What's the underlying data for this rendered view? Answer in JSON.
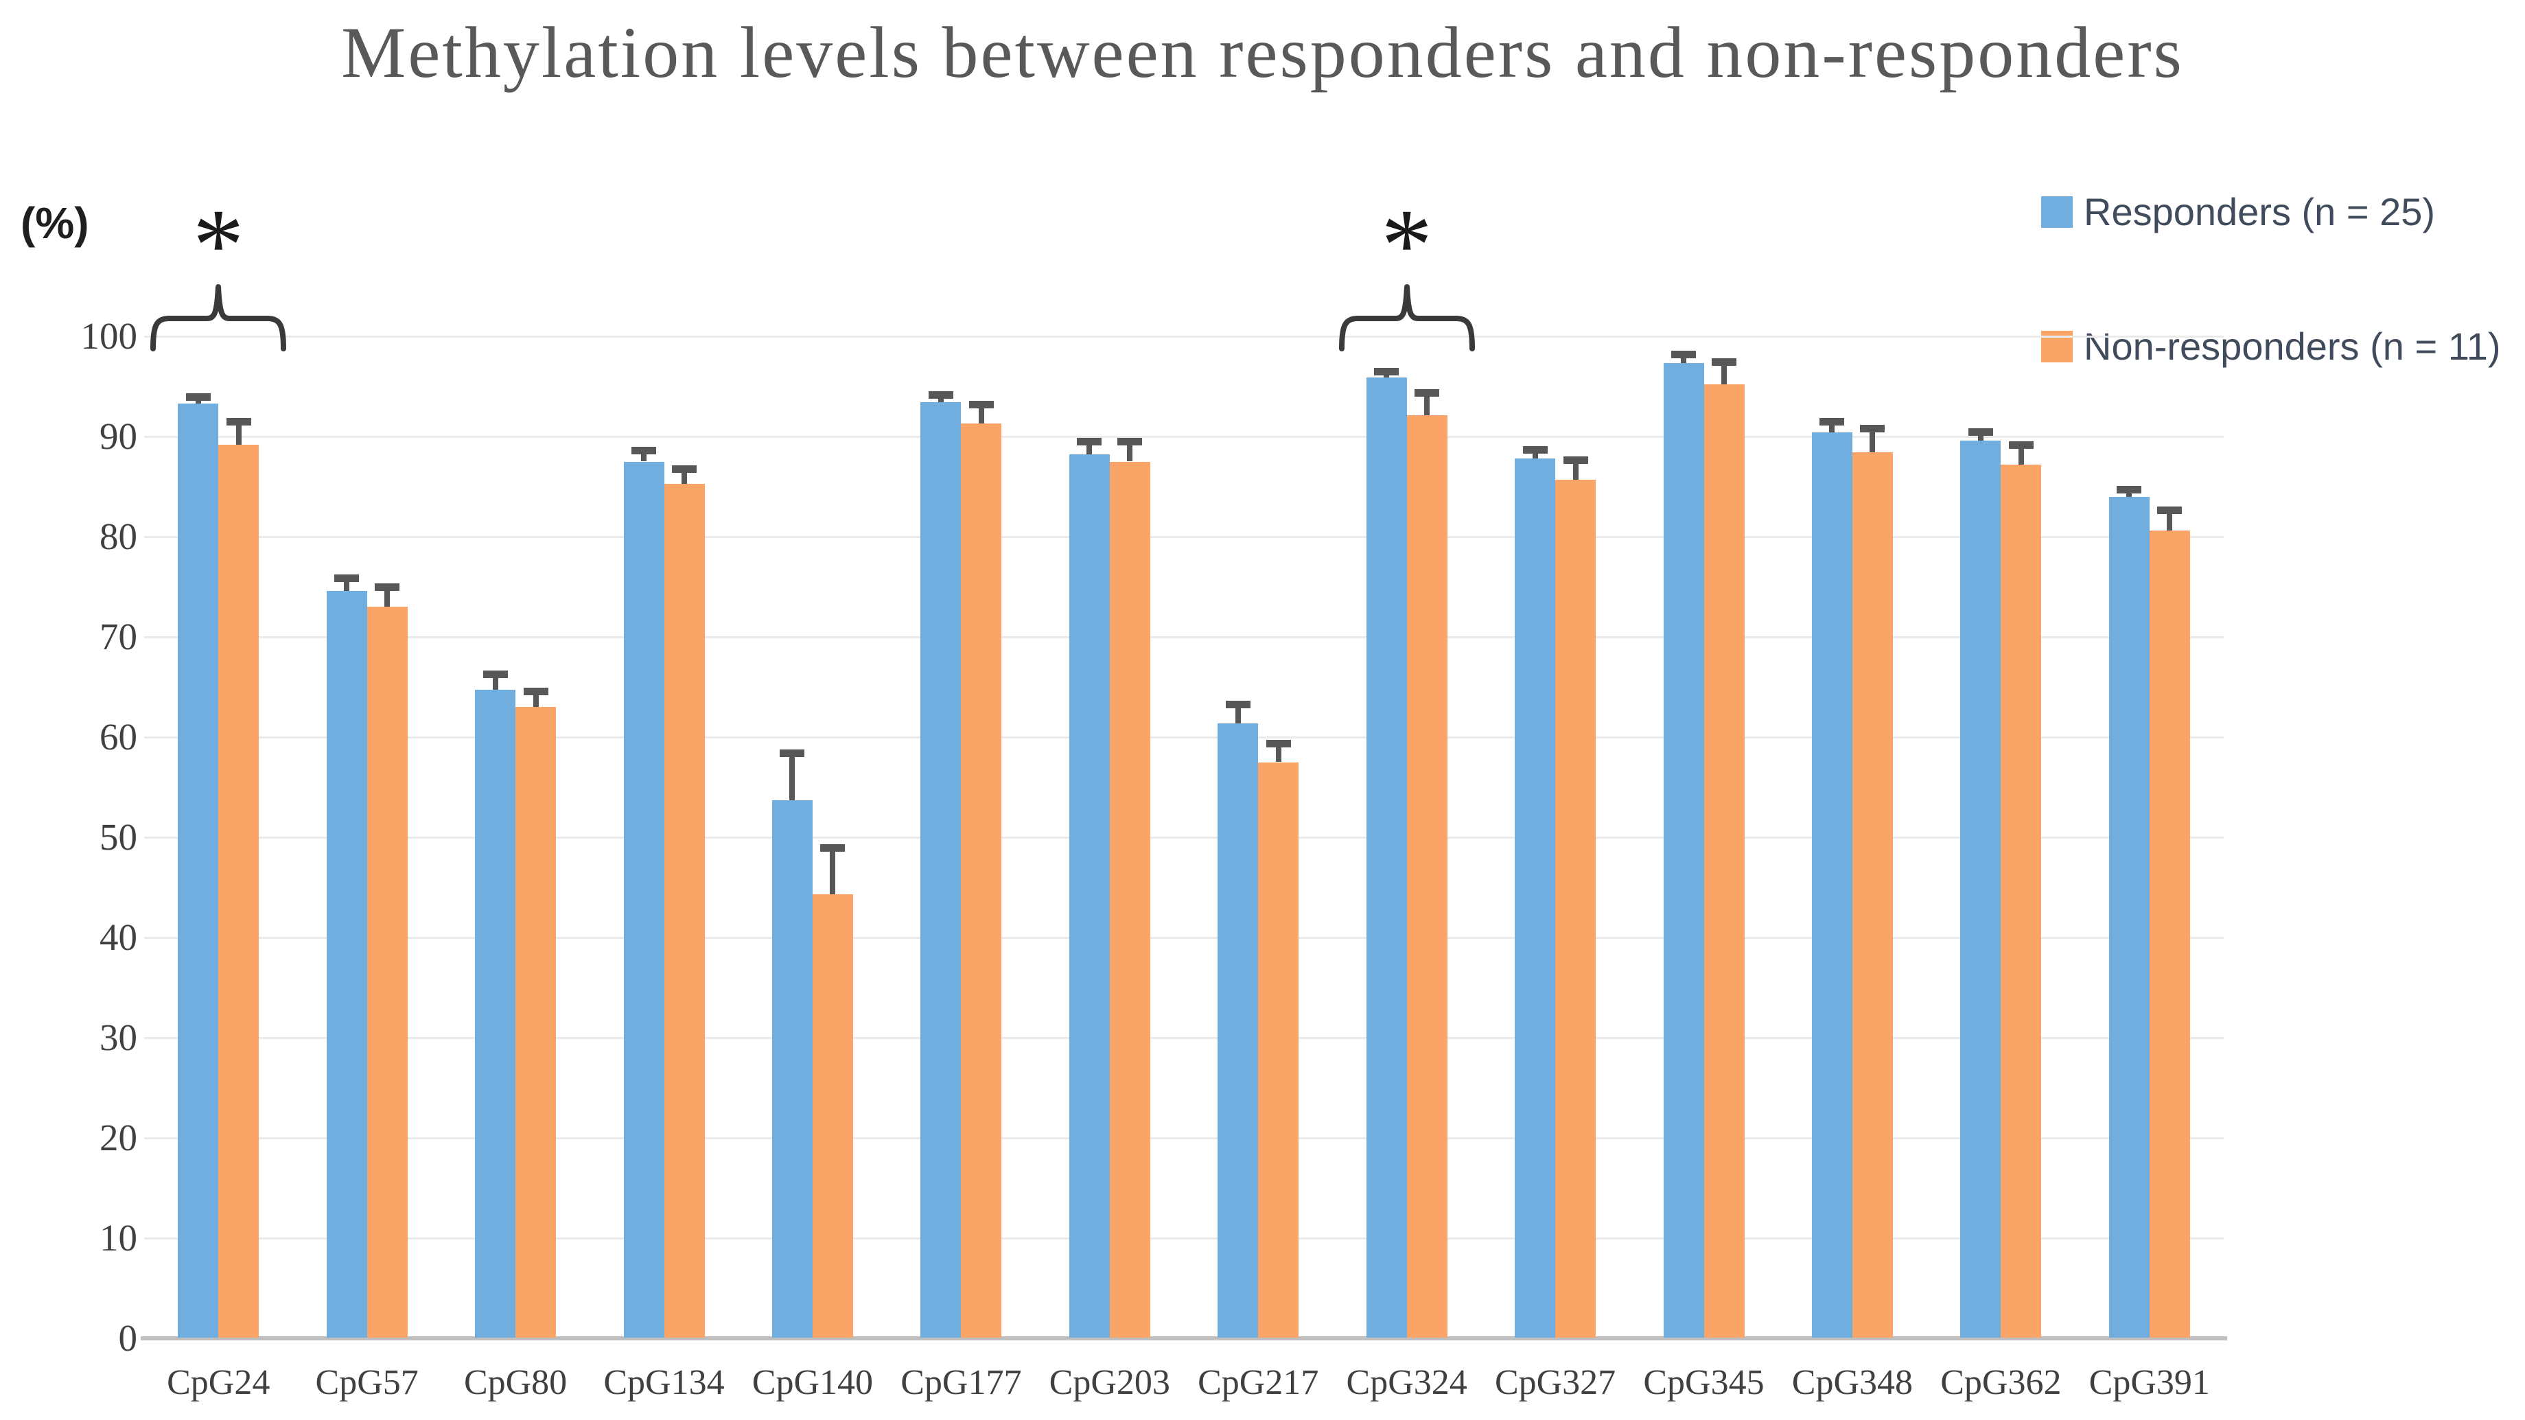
{
  "title": "Methylation levels between responders and non-responders",
  "y_axis_unit_label": "(%)",
  "legend": [
    {
      "key": "responders",
      "label": "Responders (n = 25)",
      "color": "#6FAEDF"
    },
    {
      "key": "non_responders",
      "label": "Non-responders (n = 11)",
      "color": "#FAA468"
    }
  ],
  "colors": {
    "responders_bar": "#6FAEDF",
    "non_responders_bar": "#FAA468",
    "error_bar": "#575757",
    "gridline": "#EBEBEB",
    "axis_line": "#BFBFBF",
    "title_text": "#595959",
    "tick_text": "#404040",
    "legend_text": "#404C5C",
    "annotation": "#3A3A3A"
  },
  "chart_data": {
    "type": "bar",
    "title": "Methylation levels between responders and non-responders",
    "xlabel": "",
    "ylabel": "(%)",
    "ylim": [
      0,
      100
    ],
    "ytick_step": 10,
    "grid": true,
    "legend_position": "top-right",
    "categories": [
      "CpG24",
      "CpG57",
      "CpG80",
      "CpG134",
      "CpG140",
      "CpG177",
      "CpG203",
      "CpG217",
      "CpG324",
      "CpG327",
      "CpG345",
      "CpG348",
      "CpG362",
      "CpG391"
    ],
    "series": [
      {
        "name": "Responders (n = 25)",
        "key": "responders",
        "color": "#6FAEDF",
        "values": [
          93.3,
          74.6,
          64.7,
          87.5,
          53.7,
          93.4,
          88.2,
          61.4,
          95.9,
          87.8,
          97.3,
          90.4,
          89.6,
          84.0
        ],
        "errors": [
          0.7,
          1.3,
          1.6,
          1.1,
          4.7,
          0.8,
          1.3,
          1.9,
          0.6,
          0.9,
          0.9,
          1.1,
          0.9,
          0.7
        ]
      },
      {
        "name": "Non-responders (n = 11)",
        "key": "non_responders",
        "color": "#FAA468",
        "values": [
          89.2,
          73.0,
          63.0,
          85.3,
          44.3,
          91.3,
          87.5,
          57.5,
          92.1,
          85.7,
          95.2,
          88.4,
          87.2,
          80.6
        ],
        "errors": [
          2.3,
          2.0,
          1.6,
          1.5,
          4.7,
          1.9,
          2.0,
          1.9,
          2.3,
          2.0,
          2.3,
          2.4,
          2.0,
          2.1
        ]
      }
    ],
    "annotations": [
      {
        "category": "CpG24",
        "symbol": "*"
      },
      {
        "category": "CpG324",
        "symbol": "*"
      }
    ]
  }
}
